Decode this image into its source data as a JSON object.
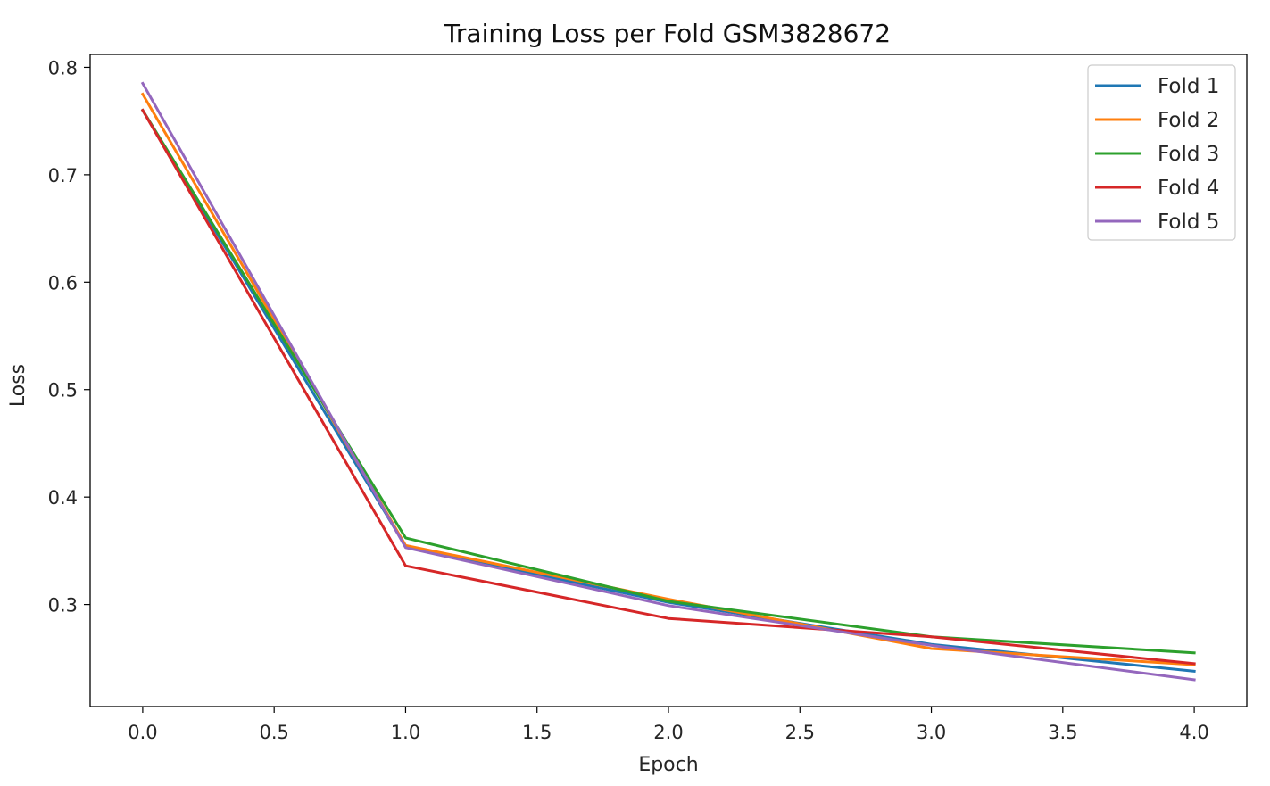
{
  "chart_data": {
    "type": "line",
    "title": "Training Loss per Fold GSM3828672",
    "xlabel": "Epoch",
    "ylabel": "Loss",
    "xlim": [
      -0.2,
      4.2
    ],
    "ylim": [
      0.205,
      0.812
    ],
    "xticks": [
      0.0,
      0.5,
      1.0,
      1.5,
      2.0,
      2.5,
      3.0,
      3.5,
      4.0
    ],
    "xtick_labels": [
      "0.0",
      "0.5",
      "1.0",
      "1.5",
      "2.0",
      "2.5",
      "3.0",
      "3.5",
      "4.0"
    ],
    "yticks": [
      0.3,
      0.4,
      0.5,
      0.6,
      0.7,
      0.8
    ],
    "ytick_labels": [
      "0.3",
      "0.4",
      "0.5",
      "0.6",
      "0.7",
      "0.8"
    ],
    "grid": false,
    "legend_position": "top-right",
    "x": [
      0,
      1,
      2,
      3,
      4
    ],
    "series": [
      {
        "name": "Fold 1",
        "color": "#1f77b4",
        "values": [
          0.76,
          0.354,
          0.302,
          0.263,
          0.238
        ]
      },
      {
        "name": "Fold 2",
        "color": "#ff7f0e",
        "values": [
          0.775,
          0.355,
          0.305,
          0.259,
          0.244
        ]
      },
      {
        "name": "Fold 3",
        "color": "#2ca02c",
        "values": [
          0.76,
          0.362,
          0.303,
          0.27,
          0.255
        ]
      },
      {
        "name": "Fold 4",
        "color": "#d62728",
        "values": [
          0.76,
          0.336,
          0.287,
          0.27,
          0.245
        ]
      },
      {
        "name": "Fold 5",
        "color": "#9467bd",
        "values": [
          0.785,
          0.353,
          0.299,
          0.262,
          0.23
        ]
      }
    ]
  }
}
